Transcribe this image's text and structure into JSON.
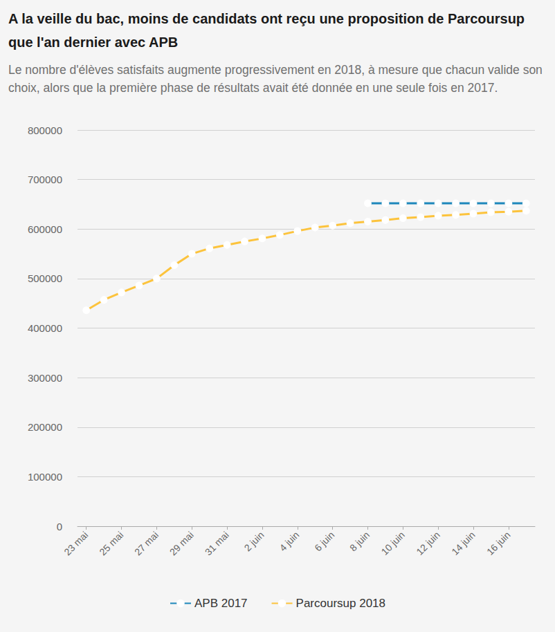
{
  "chart_data": {
    "type": "line",
    "title": "A la veille du bac, moins de candidats ont reçu une proposition de Parcoursup que l'an dernier avec APB",
    "subtitle": "Le nombre d'élèves satisfaits augmente progressivement en 2018, à mesure que chacun valide son choix, alors que la première phase de résultats avait été donnée en une seule fois en 2017.",
    "categories": [
      "23 mai",
      null,
      "25 mai",
      null,
      "27 mai",
      null,
      "29 mai",
      null,
      "31 mai",
      null,
      "2 juin",
      null,
      "4 juin",
      null,
      "6 juin",
      null,
      "8 juin",
      null,
      "10 juin",
      null,
      "12 juin",
      null,
      "14 juin",
      null,
      "16 juin",
      null
    ],
    "series": [
      {
        "name": "APB 2017",
        "color": "#1d87bb",
        "values": [
          null,
          null,
          null,
          null,
          null,
          null,
          null,
          null,
          null,
          null,
          null,
          null,
          null,
          null,
          null,
          null,
          652000,
          652000,
          652000,
          652000,
          652000,
          652000,
          652000,
          652000,
          652000,
          652000
        ]
      },
      {
        "name": "Parcoursup 2018",
        "color": "#fcc33c",
        "values": [
          436000,
          457000,
          472000,
          486000,
          500000,
          527000,
          550000,
          561000,
          568000,
          575000,
          581000,
          588000,
          596000,
          603000,
          607000,
          612000,
          615000,
          618000,
          622000,
          624000,
          627000,
          628500,
          631000,
          634000,
          635000,
          637000
        ]
      }
    ],
    "ylim": [
      0,
      800000
    ],
    "yticks": [
      0,
      100000,
      200000,
      300000,
      400000,
      500000,
      600000,
      700000,
      800000
    ],
    "grid": true,
    "legend": "bottom",
    "marker": "circle"
  }
}
